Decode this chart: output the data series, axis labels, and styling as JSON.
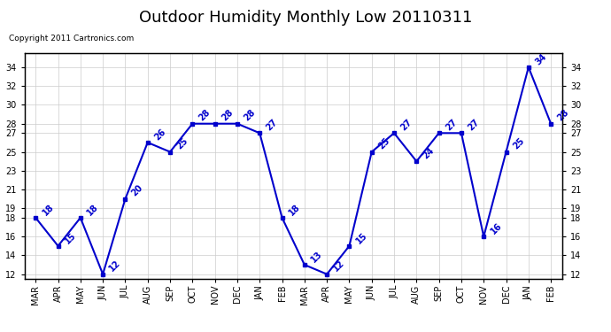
{
  "title": "Outdoor Humidity Monthly Low 20110311",
  "copyright": "Copyright 2011 Cartronics.com",
  "months": [
    "MAR",
    "APR",
    "MAY",
    "JUN",
    "JUL",
    "AUG",
    "SEP",
    "OCT",
    "NOV",
    "DEC",
    "JAN",
    "FEB",
    "MAR",
    "APR",
    "MAY",
    "JUN",
    "JUL",
    "AUG",
    "SEP",
    "OCT",
    "NOV",
    "DEC",
    "JAN",
    "FEB"
  ],
  "values": [
    18,
    15,
    18,
    12,
    20,
    26,
    25,
    28,
    28,
    28,
    27,
    18,
    13,
    12,
    15,
    25,
    27,
    24,
    27,
    27,
    16,
    25,
    34,
    28
  ],
  "line_color": "#0000cc",
  "marker": "s",
  "marker_size": 3,
  "ylim": [
    11.5,
    35.5
  ],
  "yticks": [
    12,
    14,
    16,
    18,
    19,
    21,
    23,
    25,
    27,
    28,
    30,
    32,
    34
  ],
  "grid_color": "#cccccc",
  "bg_color": "#ffffff",
  "title_fontsize": 13,
  "label_fontsize": 7,
  "annot_fontsize": 7,
  "copyright_fontsize": 6.5
}
